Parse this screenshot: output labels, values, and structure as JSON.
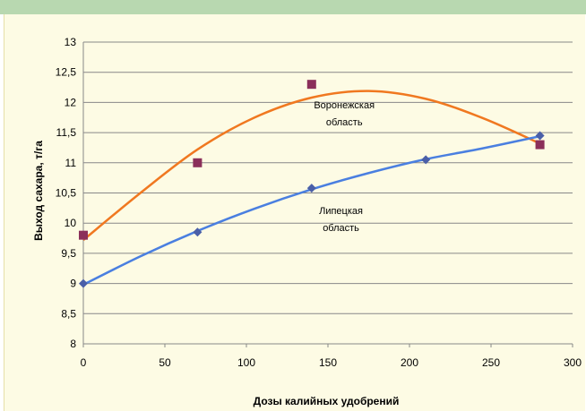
{
  "chart_data": {
    "type": "scatter",
    "xlabel": "Дозы калийных удобрений",
    "ylabel": "Выход сахара, т/га",
    "xlim": [
      0,
      300
    ],
    "ylim": [
      8,
      13
    ],
    "x_ticks": [
      "0",
      "50",
      "100",
      "150",
      "200",
      "250",
      "300"
    ],
    "y_ticks": [
      "8",
      "8,5",
      "9",
      "9,5",
      "10",
      "10,5",
      "11",
      "11,5",
      "12",
      "12,5",
      "13"
    ],
    "grid": "horizontal",
    "series": [
      {
        "name": "Воронежская область",
        "marker": "square",
        "color": "#8b2f5a",
        "trend_color": "#f07820",
        "points": [
          [
            0,
            9.8
          ],
          [
            70,
            11.0
          ],
          [
            140,
            12.3
          ],
          [
            280,
            11.3
          ]
        ],
        "trend_points": [
          [
            0,
            9.72
          ],
          [
            35,
            10.5
          ],
          [
            70,
            11.22
          ],
          [
            105,
            11.75
          ],
          [
            140,
            12.08
          ],
          [
            175,
            12.19
          ],
          [
            210,
            12.06
          ],
          [
            245,
            11.74
          ],
          [
            280,
            11.32
          ]
        ]
      },
      {
        "name": "Липецкая область",
        "marker": "diamond",
        "color": "#4a5fa8",
        "trend_color": "#4a7fe0",
        "points": [
          [
            0,
            9.0
          ],
          [
            70,
            9.85
          ],
          [
            140,
            10.58
          ],
          [
            210,
            11.05
          ],
          [
            280,
            11.45
          ]
        ],
        "trend_points": [
          [
            0,
            8.98
          ],
          [
            35,
            9.45
          ],
          [
            70,
            9.87
          ],
          [
            105,
            10.24
          ],
          [
            140,
            10.56
          ],
          [
            175,
            10.83
          ],
          [
            210,
            11.06
          ],
          [
            245,
            11.24
          ],
          [
            280,
            11.44
          ]
        ]
      }
    ],
    "annotations": [
      {
        "lines": [
          "Воронежская",
          "область"
        ],
        "x": 160,
        "y": 11.9
      },
      {
        "lines": [
          "Липецкая",
          "область"
        ],
        "x": 158,
        "y": 10.15
      }
    ]
  }
}
